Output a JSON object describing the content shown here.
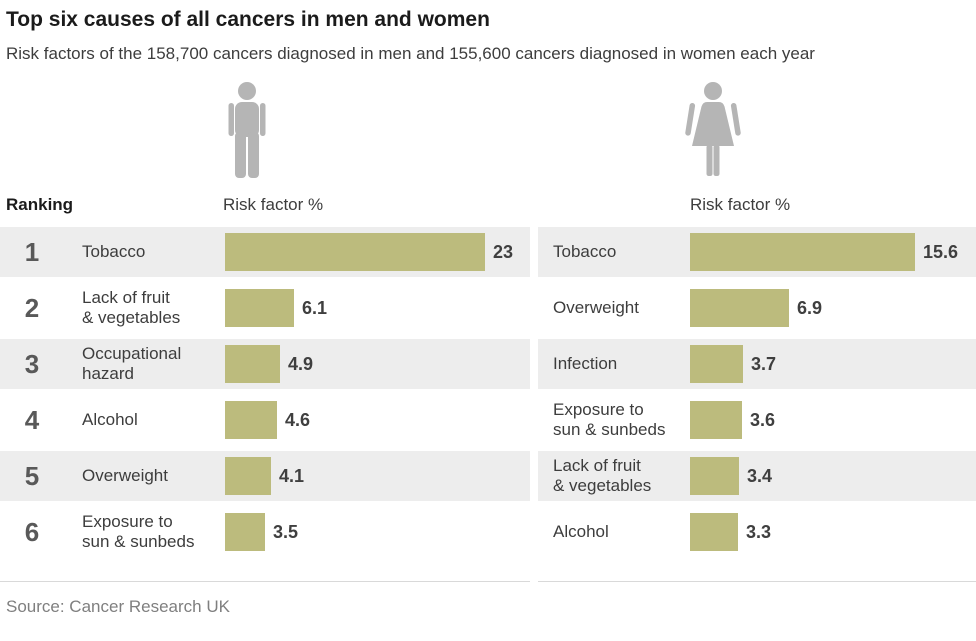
{
  "chart_data": {
    "type": "bar",
    "title": "Top six causes of all cancers in men and women",
    "subtitle": "Risk factors of the 158,700 cancers diagnosed in men and 155,600 cancers diagnosed in women each year",
    "unit": "%",
    "ranking_header": "Ranking",
    "rankings": [
      "1",
      "2",
      "3",
      "4",
      "5",
      "6"
    ],
    "legend_position": "none",
    "grid": false,
    "series": [
      {
        "name": "Men",
        "icon": "man-icon",
        "header": "Risk factor %",
        "categories": [
          "Tobacco",
          "Lack of fruit\n& vegetables",
          "Occupational\nhazard",
          "Alcohol",
          "Overweight",
          "Exposure to\nsun & sunbeds"
        ],
        "values": [
          23,
          6.1,
          4.9,
          4.6,
          4.1,
          3.5
        ]
      },
      {
        "name": "Women",
        "icon": "woman-icon",
        "header": "Risk factor %",
        "categories": [
          "Tobacco",
          "Overweight",
          "Infection",
          "Exposure to\nsun & sunbeds",
          "Lack of fruit\n& vegetables",
          "Alcohol"
        ],
        "values": [
          15.6,
          6.9,
          3.7,
          3.6,
          3.4,
          3.3
        ]
      }
    ]
  },
  "source": "Source: Cancer Research UK",
  "colors": {
    "bar": "#bcbb7d",
    "row_alt": "#ededed",
    "icon": "#b5b5b5",
    "divider": "#d9d9d9"
  }
}
